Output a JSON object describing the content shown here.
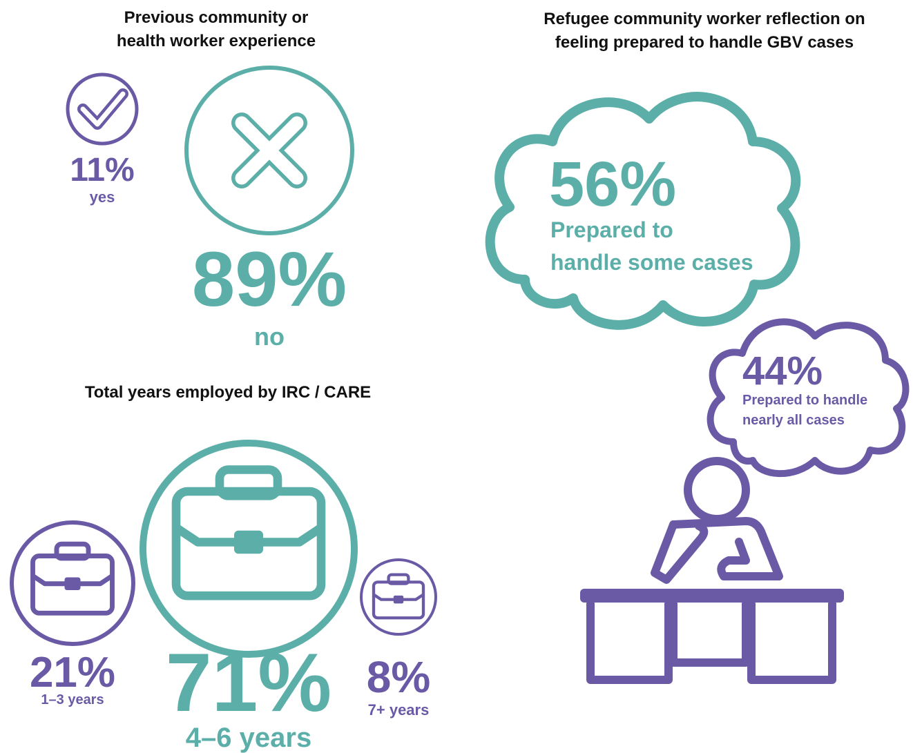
{
  "experience": {
    "title_lines": [
      "Previous community or",
      "health worker experience"
    ],
    "yes": {
      "percent": "11%",
      "label": "yes"
    },
    "no": {
      "percent": "89%",
      "label": "no"
    }
  },
  "years_employed": {
    "title": "Total years employed by IRC / CARE",
    "groups": [
      {
        "percent": "21%",
        "label": "1–3 years"
      },
      {
        "percent": "71%",
        "label": "4–6 years"
      },
      {
        "percent": "8%",
        "label": "7+ years"
      }
    ]
  },
  "preparedness": {
    "title_lines": [
      "Refugee community worker reflection on",
      "feeling prepared to handle GBV cases"
    ],
    "some": {
      "percent": "56%",
      "label_lines": [
        "Prepared to",
        "handle some cases"
      ]
    },
    "nearly_all": {
      "percent": "44%",
      "label_lines": [
        "Prepared to handle",
        "nearly all cases"
      ]
    }
  }
}
